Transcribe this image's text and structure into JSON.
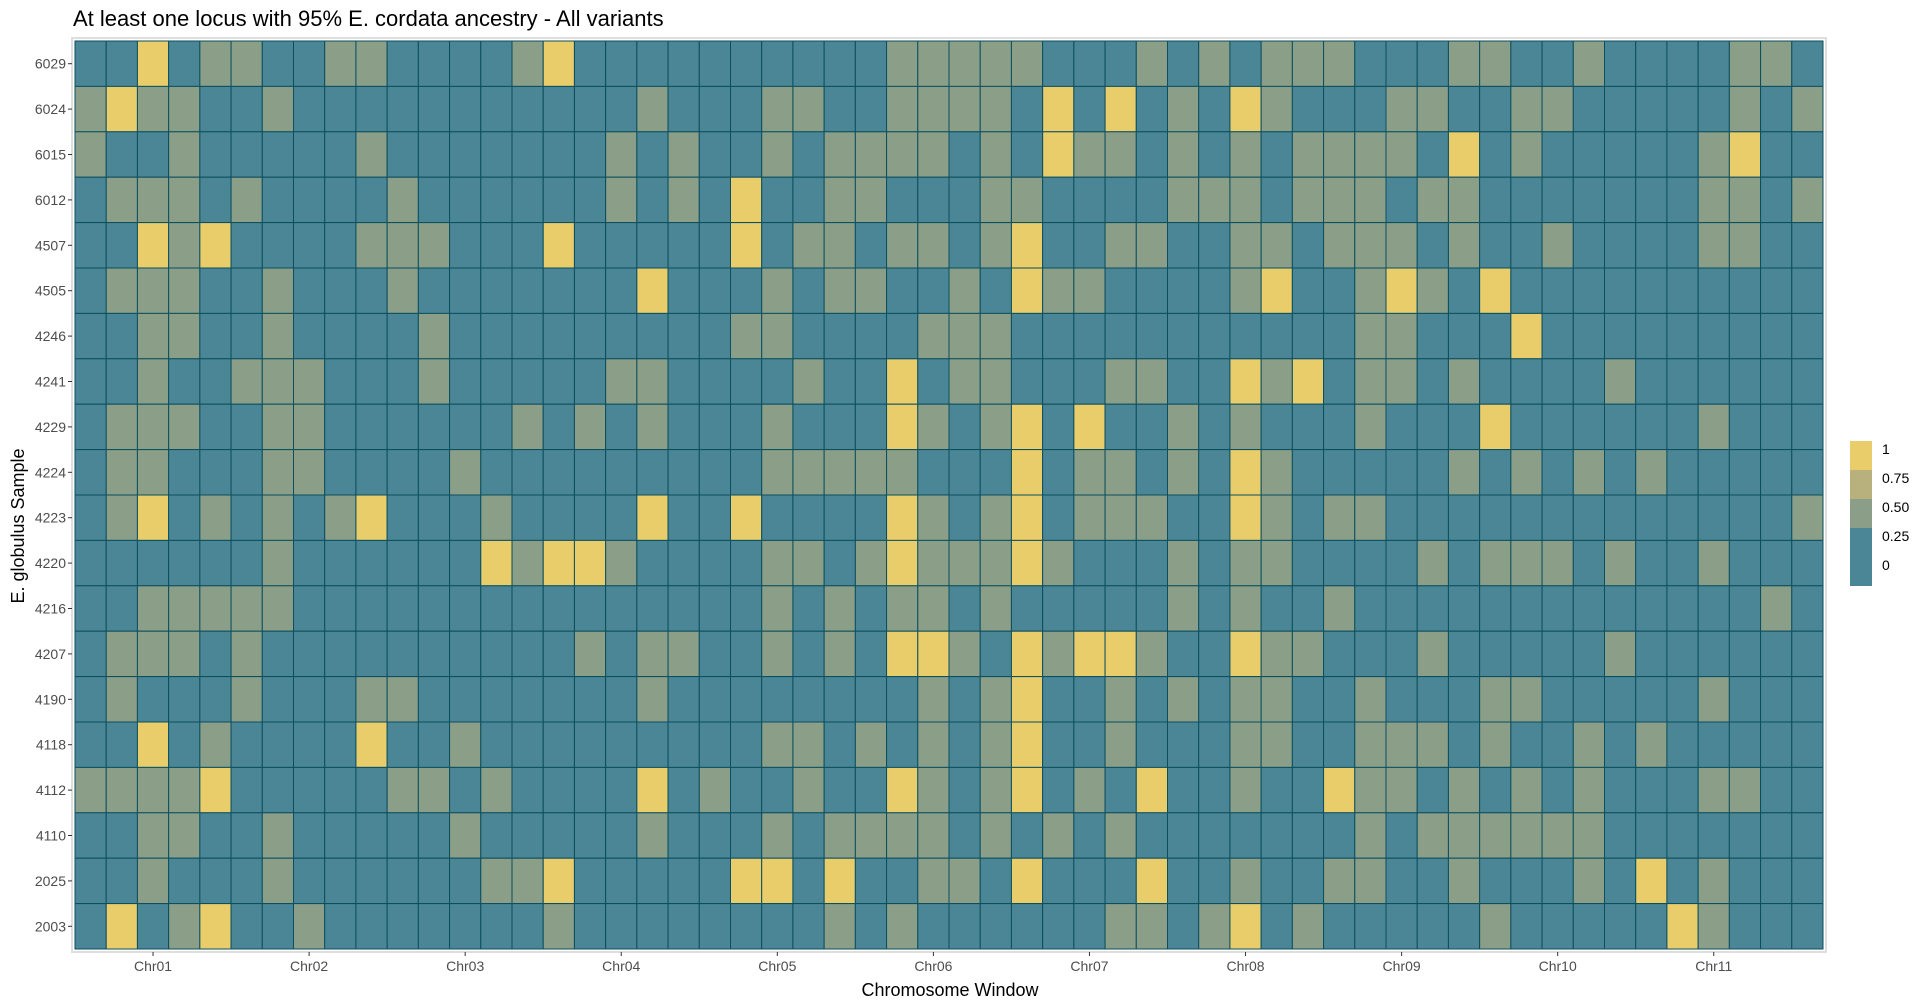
{
  "chart_data": {
    "type": "heatmap",
    "title": "At least one locus with 95% E. cordata ancestry - All variants",
    "xlabel": "Chromosome Window",
    "ylabel": "E. globulus Sample",
    "x_tick_labels": [
      "Chr01",
      "Chr02",
      "Chr03",
      "Chr04",
      "Chr05",
      "Chr06",
      "Chr07",
      "Chr08",
      "Chr09",
      "Chr10",
      "Chr11"
    ],
    "x_tick_columns": [
      2.5,
      7.5,
      12.5,
      17.5,
      22.5,
      27.5,
      32.5,
      37.5,
      42.5,
      47.5,
      52.5
    ],
    "rows": [
      "6029",
      "6024",
      "6015",
      "6012",
      "4507",
      "4505",
      "4246",
      "4241",
      "4229",
      "4224",
      "4223",
      "4220",
      "4216",
      "4207",
      "4190",
      "4118",
      "4112",
      "4110",
      "2025",
      "2003"
    ],
    "n_columns": 56,
    "color_scale": {
      "breaks": [
        1,
        0.75,
        0.5,
        0.25,
        0
      ],
      "labels": [
        "1",
        "0.75",
        "0.50",
        "0.25",
        "0"
      ],
      "colors": [
        "#e9cd6b",
        "#b8b17e",
        "#8a9e88",
        "#4b8696",
        "#4b8696"
      ],
      "legend_position": "right"
    },
    "colors": {
      "cell_border": "#0a4f5e",
      "panel_border": "#dedede",
      "grid": "#e4e4e4"
    },
    "values": [
      [
        0,
        0,
        1,
        0,
        0.5,
        0.5,
        0,
        0,
        0.5,
        0.5,
        0,
        0,
        0,
        0,
        0.5,
        1,
        0,
        0,
        0,
        0,
        0,
        0,
        0,
        0,
        0,
        0,
        0.5,
        0.5,
        0.5,
        0.5,
        0.5,
        0,
        0,
        0,
        0.5,
        0,
        0.5,
        0,
        0.5,
        0.5,
        0.5,
        0,
        0,
        0,
        0.5,
        0.5,
        0,
        0,
        0.5,
        0,
        0,
        0,
        0,
        0.5,
        0.5,
        0
      ],
      [
        0.5,
        1,
        0.5,
        0.5,
        0,
        0,
        0.5,
        0,
        0,
        0,
        0,
        0,
        0,
        0,
        0,
        0,
        0,
        0,
        0.5,
        0,
        0,
        0,
        0.5,
        0.5,
        0,
        0,
        0.5,
        0.5,
        0.5,
        0.5,
        0,
        1,
        0,
        1,
        0,
        0.5,
        0,
        1,
        0.5,
        0,
        0,
        0,
        0.5,
        0.5,
        0,
        0,
        0.5,
        0.5,
        0,
        0,
        0,
        0,
        0,
        0.5,
        0,
        0.5
      ],
      [
        0.5,
        0,
        0,
        0.5,
        0,
        0,
        0,
        0,
        0,
        0.5,
        0,
        0,
        0,
        0,
        0,
        0,
        0,
        0.5,
        0,
        0.5,
        0,
        0,
        0.5,
        0,
        0.5,
        0.5,
        0.5,
        0.5,
        0,
        0.5,
        0,
        1,
        0.5,
        0.5,
        0,
        0.5,
        0,
        0.5,
        0,
        0.5,
        0.5,
        0.5,
        0.5,
        0,
        1,
        0,
        0.5,
        0,
        0,
        0,
        0,
        0,
        0.5,
        1,
        0,
        0
      ],
      [
        0,
        0.5,
        0.5,
        0.5,
        0,
        0.5,
        0,
        0,
        0,
        0,
        0.5,
        0,
        0,
        0,
        0,
        0,
        0,
        0.5,
        0,
        0.5,
        0,
        1,
        0,
        0,
        0.5,
        0.5,
        0,
        0,
        0,
        0.5,
        0.5,
        0,
        0,
        0,
        0,
        0.5,
        0.5,
        0.5,
        0,
        0.5,
        0.5,
        0.5,
        0,
        0.5,
        0.5,
        0,
        0,
        0,
        0,
        0,
        0,
        0,
        0.5,
        0.5,
        0,
        0.5
      ],
      [
        0,
        0,
        1,
        0.5,
        1,
        0,
        0,
        0,
        0,
        0.5,
        0.5,
        0.5,
        0,
        0,
        0,
        1,
        0,
        0,
        0,
        0,
        0,
        1,
        0,
        0.5,
        0.5,
        0,
        0.5,
        0.5,
        0,
        0.5,
        1,
        0,
        0,
        0.5,
        0.5,
        0,
        0,
        0.5,
        0.5,
        0,
        0.5,
        0.5,
        0.5,
        0,
        0.5,
        0,
        0,
        0.5,
        0,
        0,
        0,
        0,
        0.5,
        0.5,
        0,
        0
      ],
      [
        0,
        0.5,
        0.5,
        0.5,
        0,
        0,
        0.5,
        0,
        0,
        0,
        0.5,
        0,
        0,
        0,
        0,
        0,
        0,
        0,
        1,
        0,
        0,
        0,
        0.5,
        0,
        0.5,
        0.5,
        0,
        0,
        0.5,
        0,
        1,
        0.5,
        0.5,
        0,
        0,
        0,
        0,
        0.5,
        1,
        0,
        0,
        0.5,
        1,
        0.5,
        0,
        1,
        0,
        0,
        0,
        0,
        0,
        0,
        0,
        0,
        0,
        0
      ],
      [
        0,
        0,
        0.5,
        0.5,
        0,
        0,
        0.5,
        0,
        0,
        0,
        0,
        0.5,
        0,
        0,
        0,
        0,
        0,
        0,
        0,
        0,
        0,
        0.5,
        0.5,
        0,
        0,
        0,
        0,
        0.5,
        0.5,
        0.5,
        0,
        0,
        0,
        0,
        0,
        0,
        0,
        0,
        0,
        0,
        0,
        0.5,
        0.5,
        0,
        0,
        0,
        1,
        0,
        0,
        0,
        0,
        0,
        0,
        0,
        0,
        0
      ],
      [
        0,
        0,
        0.5,
        0,
        0,
        0.5,
        0.5,
        0.5,
        0,
        0,
        0,
        0.5,
        0,
        0,
        0,
        0,
        0,
        0.5,
        0.5,
        0,
        0,
        0,
        0,
        0.5,
        0,
        0,
        1,
        0,
        0.5,
        0.5,
        0,
        0,
        0,
        0.5,
        0.5,
        0,
        0,
        1,
        0.5,
        1,
        0,
        0.5,
        0.5,
        0,
        0.5,
        0,
        0,
        0,
        0,
        0.5,
        0,
        0,
        0,
        0,
        0,
        0
      ],
      [
        0,
        0.5,
        0.5,
        0.5,
        0,
        0,
        0.5,
        0.5,
        0,
        0,
        0,
        0,
        0,
        0,
        0.5,
        0,
        0.5,
        0,
        0.5,
        0,
        0,
        0,
        0.5,
        0,
        0,
        0,
        1,
        0.5,
        0,
        0.5,
        1,
        0,
        1,
        0,
        0,
        0.5,
        0,
        0.5,
        0,
        0,
        0,
        0.5,
        0,
        0,
        0,
        1,
        0,
        0,
        0,
        0,
        0,
        0,
        0.5,
        0,
        0,
        0
      ],
      [
        0,
        0.5,
        0.5,
        0,
        0,
        0,
        0.5,
        0.5,
        0,
        0,
        0,
        0,
        0.5,
        0,
        0,
        0,
        0,
        0,
        0,
        0,
        0,
        0,
        0.5,
        0.5,
        0.5,
        0.5,
        0.5,
        0,
        0,
        0,
        1,
        0,
        0.5,
        0.5,
        0,
        0.5,
        0,
        1,
        0.5,
        0,
        0,
        0,
        0,
        0,
        0.5,
        0,
        0.5,
        0,
        0.5,
        0,
        0.5,
        0,
        0,
        0,
        0,
        0
      ],
      [
        0,
        0.5,
        1,
        0,
        0.5,
        0,
        0.5,
        0,
        0.5,
        1,
        0,
        0,
        0,
        0.5,
        0,
        0,
        0,
        0,
        1,
        0,
        0,
        1,
        0,
        0,
        0,
        0,
        1,
        0.5,
        0,
        0.5,
        1,
        0,
        0.5,
        0.5,
        0.5,
        0,
        0,
        1,
        0.5,
        0,
        0.5,
        0.5,
        0,
        0,
        0,
        0,
        0,
        0,
        0,
        0,
        0,
        0,
        0,
        0,
        0,
        0.5
      ],
      [
        0,
        0,
        0,
        0,
        0,
        0,
        0.5,
        0,
        0,
        0,
        0,
        0,
        0,
        1,
        0.5,
        1,
        1,
        0.5,
        0,
        0,
        0,
        0,
        0.5,
        0.5,
        0,
        0.5,
        1,
        0.5,
        0.5,
        0.5,
        1,
        0.5,
        0,
        0,
        0,
        0.5,
        0,
        0.5,
        0.5,
        0,
        0,
        0,
        0,
        0.5,
        0,
        0.5,
        0.5,
        0.5,
        0,
        0.5,
        0,
        0,
        0.5,
        0,
        0,
        0
      ],
      [
        0,
        0,
        0.5,
        0.5,
        0.5,
        0.5,
        0.5,
        0,
        0,
        0,
        0,
        0,
        0,
        0,
        0,
        0,
        0,
        0,
        0,
        0,
        0,
        0,
        0.5,
        0,
        0.5,
        0,
        0.5,
        0.5,
        0,
        0.5,
        0,
        0,
        0,
        0,
        0,
        0.5,
        0,
        0.5,
        0,
        0,
        0.5,
        0,
        0,
        0,
        0,
        0,
        0,
        0,
        0,
        0,
        0,
        0,
        0,
        0,
        0.5,
        0
      ],
      [
        0,
        0.5,
        0.5,
        0.5,
        0,
        0.5,
        0,
        0,
        0,
        0,
        0,
        0,
        0,
        0,
        0,
        0,
        0.5,
        0,
        0.5,
        0.5,
        0,
        0,
        0.5,
        0,
        0.5,
        0,
        1,
        1,
        0.5,
        0,
        1,
        0.5,
        1,
        1,
        0.5,
        0,
        0,
        1,
        0.5,
        0.5,
        0,
        0,
        0,
        0.5,
        0,
        0,
        0,
        0,
        0,
        0.5,
        0,
        0,
        0,
        0,
        0,
        0
      ],
      [
        0,
        0.5,
        0,
        0,
        0,
        0.5,
        0,
        0,
        0,
        0.5,
        0.5,
        0,
        0,
        0,
        0,
        0,
        0,
        0,
        0.5,
        0,
        0,
        0,
        0,
        0,
        0,
        0,
        0,
        0.5,
        0,
        0.5,
        1,
        0,
        0,
        0.5,
        0,
        0.5,
        0,
        0.5,
        0.5,
        0,
        0,
        0.5,
        0,
        0,
        0,
        0.5,
        0.5,
        0,
        0,
        0,
        0,
        0,
        0.5,
        0,
        0,
        0
      ],
      [
        0,
        0,
        1,
        0,
        0.5,
        0,
        0,
        0,
        0,
        1,
        0,
        0,
        0.5,
        0,
        0,
        0,
        0,
        0,
        0,
        0,
        0,
        0,
        0.5,
        0.5,
        0,
        0.5,
        0,
        0.5,
        0,
        0.5,
        1,
        0,
        0,
        0.5,
        0,
        0,
        0,
        0.5,
        0.5,
        0,
        0,
        0.5,
        0.5,
        0.5,
        0,
        0.5,
        0,
        0,
        0.5,
        0,
        0.5,
        0,
        0,
        0,
        0,
        0
      ],
      [
        0.5,
        0.5,
        0.5,
        0.5,
        1,
        0,
        0,
        0,
        0,
        0,
        0.5,
        0.5,
        0,
        0.5,
        0,
        0,
        0,
        0,
        1,
        0,
        0.5,
        0,
        0,
        0.5,
        0,
        0,
        1,
        0.5,
        0,
        0.5,
        1,
        0,
        0.5,
        0,
        1,
        0,
        0,
        0.5,
        0,
        0,
        1,
        0.5,
        0.5,
        0,
        0.5,
        0,
        0.5,
        0,
        0.5,
        0,
        0,
        0,
        0.5,
        0.5,
        0,
        0
      ],
      [
        0,
        0,
        0.5,
        0.5,
        0,
        0,
        0.5,
        0,
        0,
        0,
        0,
        0,
        0.5,
        0,
        0,
        0,
        0,
        0,
        0.5,
        0,
        0,
        0,
        0.5,
        0,
        0.5,
        0.5,
        0.5,
        0.5,
        0,
        0.5,
        0,
        0.5,
        0,
        0.5,
        0,
        0,
        0,
        0,
        0,
        0,
        0,
        0.5,
        0,
        0.5,
        0.5,
        0.5,
        0.5,
        0.5,
        0.5,
        0,
        0,
        0,
        0,
        0,
        0,
        0
      ],
      [
        0,
        0,
        0.5,
        0,
        0,
        0,
        0.5,
        0,
        0,
        0,
        0,
        0,
        0,
        0.5,
        0.5,
        1,
        0,
        0,
        0,
        0,
        0,
        1,
        1,
        0,
        1,
        0,
        0,
        0.5,
        0.5,
        0,
        1,
        0,
        0,
        0,
        1,
        0,
        0,
        0.5,
        0,
        0,
        0.5,
        0.5,
        0,
        0,
        0.5,
        0,
        0,
        0,
        0.5,
        0,
        1,
        0,
        0.5,
        0,
        0,
        0
      ],
      [
        0,
        1,
        0,
        0.5,
        1,
        0,
        0,
        0.5,
        0,
        0,
        0,
        0,
        0,
        0,
        0,
        0.5,
        0,
        0,
        0,
        0,
        0,
        0,
        0,
        0,
        0.5,
        0,
        0.5,
        0,
        0,
        0,
        0,
        0,
        0,
        0.5,
        0.5,
        0,
        0.5,
        1,
        0,
        0.5,
        0,
        0,
        0,
        0,
        0,
        0.5,
        0,
        0,
        0,
        0,
        0,
        1,
        0.5,
        0,
        0,
        0
      ]
    ]
  }
}
